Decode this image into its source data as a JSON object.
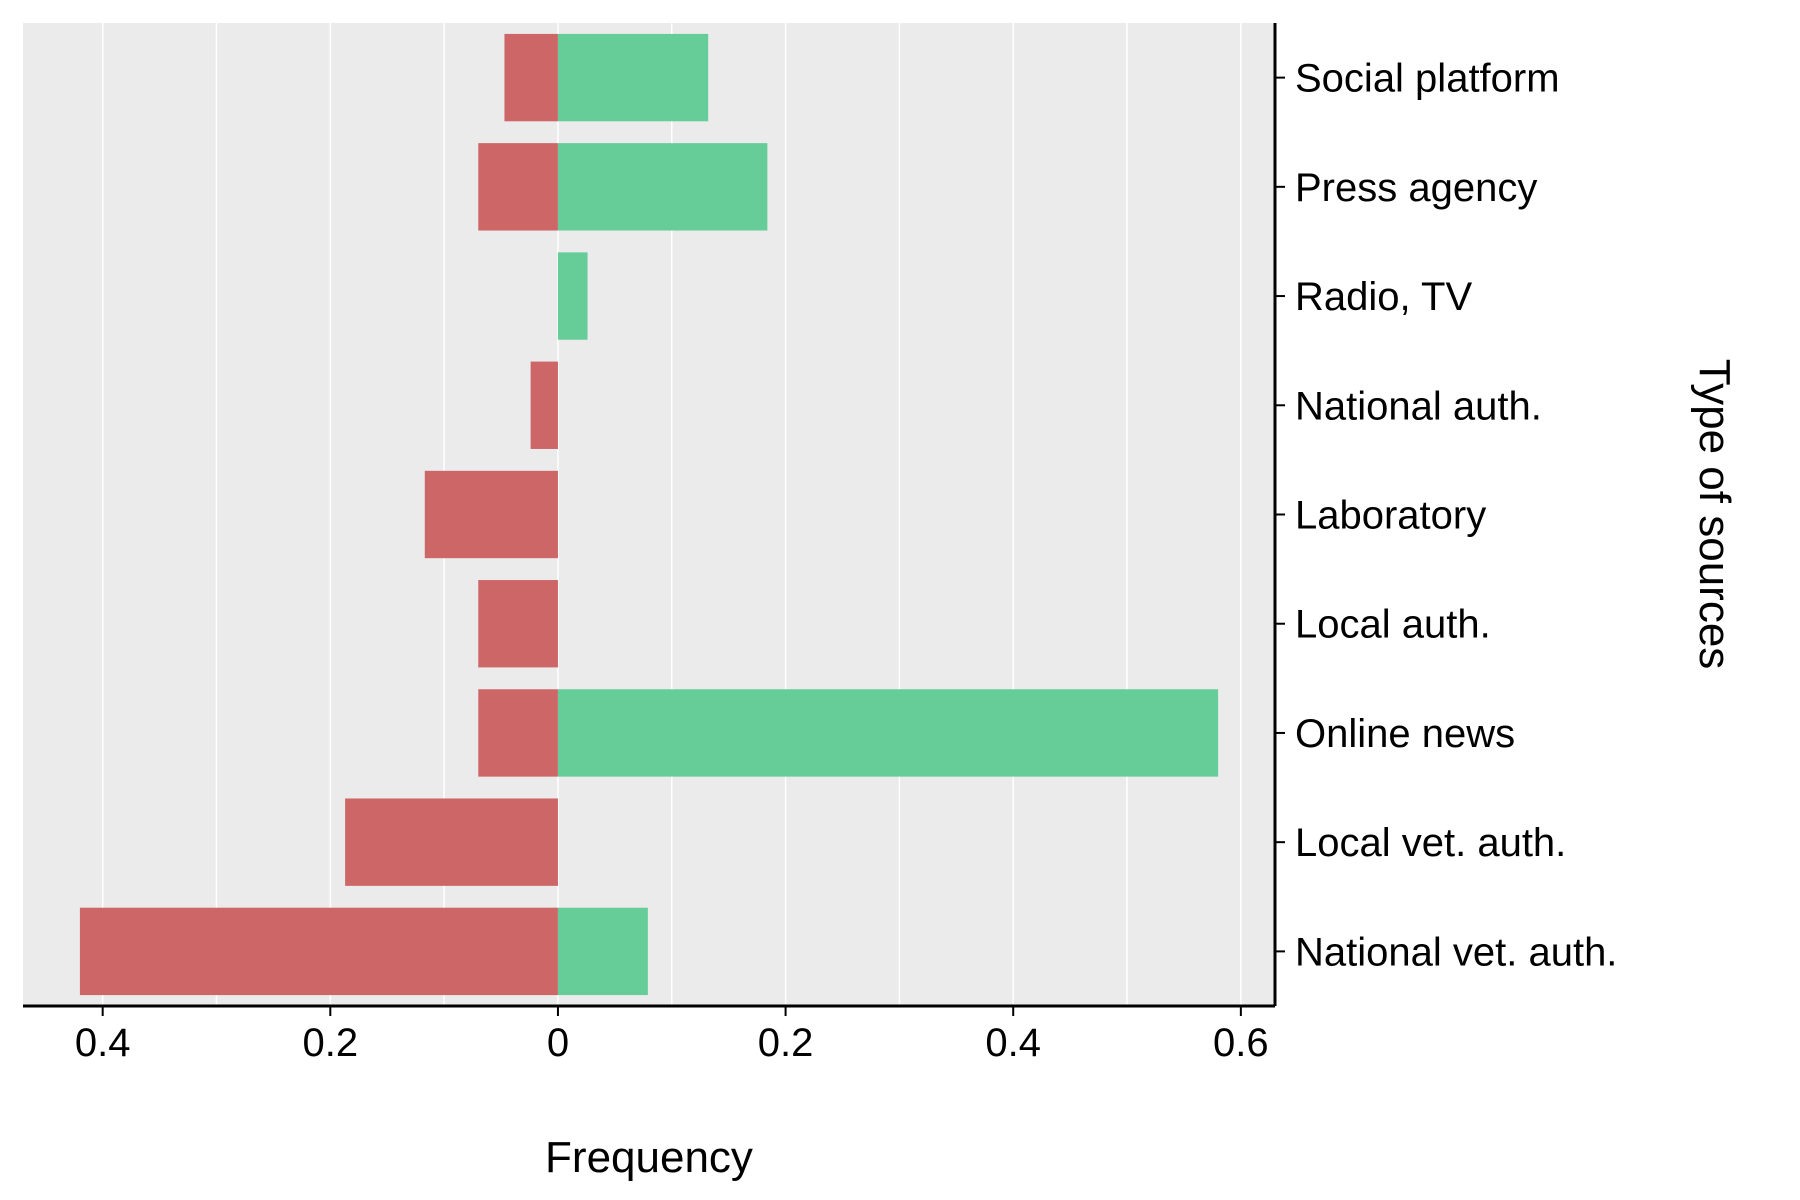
{
  "chart_data": {
    "type": "bar",
    "orientation": "horizontal",
    "layout": "diverging",
    "xlabel": "Frequency",
    "ylabel": "Type of sources",
    "xlim": [
      -0.47,
      0.63
    ],
    "x_ticks": [
      -0.4,
      -0.2,
      0,
      0.2,
      0.4,
      0.6
    ],
    "x_tick_labels": [
      "0.4",
      "0.2",
      "0",
      "0.2",
      "0.4",
      "0.6"
    ],
    "grid": true,
    "background": "#ebebeb",
    "categories": [
      "Social platform",
      "Press agency",
      "Radio, TV",
      "National auth.",
      "Laboratory",
      "Local auth.",
      "Online news",
      "Local vet. auth.",
      "National vet. auth."
    ],
    "series": [
      {
        "side": "left",
        "color": "#cd6666",
        "values": [
          0.047,
          0.07,
          0,
          0.024,
          0.117,
          0.07,
          0.07,
          0.187,
          0.42
        ]
      },
      {
        "side": "right",
        "color": "#66cd99",
        "values": [
          0.132,
          0.184,
          0.026,
          0,
          0,
          0,
          0.58,
          0,
          0.079
        ]
      }
    ]
  }
}
